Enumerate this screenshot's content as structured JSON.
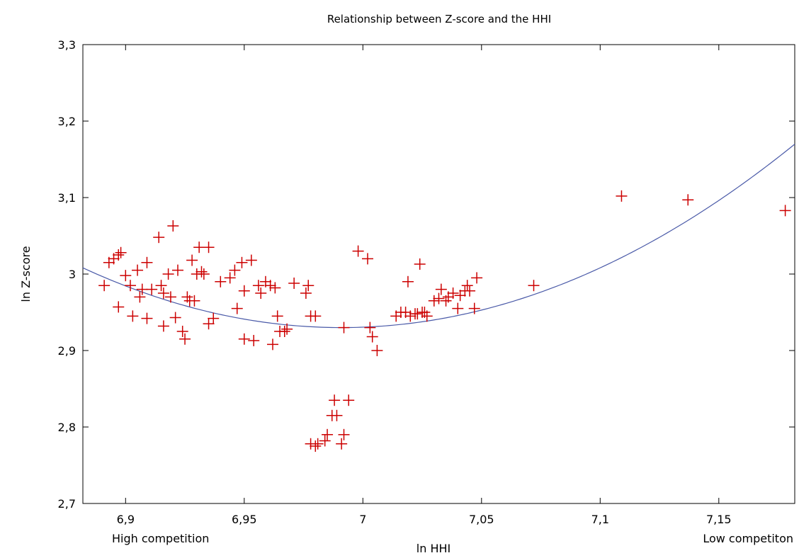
{
  "chart_data": {
    "type": "scatter",
    "title": "Relationship between Z-score and the HHI",
    "xlabel": "ln HHI",
    "ylabel": "ln Z-score",
    "xlim": [
      6.882,
      7.182
    ],
    "ylim": [
      2.7,
      3.3
    ],
    "x_ticks": [
      6.9,
      6.95,
      7.0,
      7.05,
      7.1,
      7.15
    ],
    "x_tick_labels": [
      "6,9",
      "6,95",
      "7",
      "7,05",
      "7,1",
      "7,15"
    ],
    "y_ticks": [
      2.7,
      2.8,
      2.9,
      3.0,
      3.1,
      3.2,
      3.3
    ],
    "y_tick_labels": [
      "2,7",
      "2,8",
      "2,9",
      "3",
      "3,1",
      "3,2",
      "3,3"
    ],
    "grid": false,
    "annotations": [
      {
        "name": "left-annotation",
        "text": "High competition"
      },
      {
        "name": "right-annotation",
        "text": "Low competiton"
      }
    ],
    "marker_color": "#cc0000",
    "fit_color": "#4a5aa8",
    "series": [
      {
        "marker": "plus",
        "points": [
          [
            6.891,
            2.985
          ],
          [
            6.893,
            3.015
          ],
          [
            6.895,
            3.02
          ],
          [
            6.897,
            3.025
          ],
          [
            6.898,
            3.028
          ],
          [
            6.897,
            2.957
          ],
          [
            6.9,
            2.998
          ],
          [
            6.902,
            2.985
          ],
          [
            6.903,
            2.945
          ],
          [
            6.905,
            3.005
          ],
          [
            6.906,
            2.97
          ],
          [
            6.907,
            2.98
          ],
          [
            6.909,
            3.015
          ],
          [
            6.909,
            2.942
          ],
          [
            6.911,
            2.98
          ],
          [
            6.914,
            3.048
          ],
          [
            6.915,
            2.985
          ],
          [
            6.916,
            2.975
          ],
          [
            6.916,
            2.932
          ],
          [
            6.918,
            3.0
          ],
          [
            6.919,
            2.97
          ],
          [
            6.92,
            3.063
          ],
          [
            6.921,
            2.943
          ],
          [
            6.922,
            3.005
          ],
          [
            6.924,
            2.925
          ],
          [
            6.925,
            2.915
          ],
          [
            6.926,
            2.97
          ],
          [
            6.927,
            2.965
          ],
          [
            6.928,
            3.018
          ],
          [
            6.929,
            2.965
          ],
          [
            6.93,
            3.0
          ],
          [
            6.931,
            3.035
          ],
          [
            6.932,
            3.003
          ],
          [
            6.933,
            3.0
          ],
          [
            6.935,
            3.035
          ],
          [
            6.935,
            2.935
          ],
          [
            6.937,
            2.942
          ],
          [
            6.94,
            2.99
          ],
          [
            6.944,
            2.995
          ],
          [
            6.946,
            3.005
          ],
          [
            6.947,
            2.955
          ],
          [
            6.949,
            3.015
          ],
          [
            6.95,
            2.915
          ],
          [
            6.95,
            2.978
          ],
          [
            6.953,
            3.018
          ],
          [
            6.954,
            2.913
          ],
          [
            6.956,
            2.985
          ],
          [
            6.957,
            2.975
          ],
          [
            6.959,
            2.99
          ],
          [
            6.961,
            2.985
          ],
          [
            6.962,
            2.908
          ],
          [
            6.963,
            2.982
          ],
          [
            6.964,
            2.945
          ],
          [
            6.965,
            2.925
          ],
          [
            6.967,
            2.925
          ],
          [
            6.968,
            2.928
          ],
          [
            6.971,
            2.988
          ],
          [
            6.976,
            2.975
          ],
          [
            6.977,
            2.985
          ],
          [
            6.978,
            2.778
          ],
          [
            6.978,
            2.945
          ],
          [
            6.98,
            2.945
          ],
          [
            6.98,
            2.775
          ],
          [
            6.981,
            2.778
          ],
          [
            6.984,
            2.782
          ],
          [
            6.985,
            2.79
          ],
          [
            6.987,
            2.815
          ],
          [
            6.988,
            2.835
          ],
          [
            6.989,
            2.815
          ],
          [
            6.991,
            2.778
          ],
          [
            6.992,
            2.79
          ],
          [
            6.992,
            2.93
          ],
          [
            6.994,
            2.835
          ],
          [
            6.998,
            3.03
          ],
          [
            7.002,
            3.02
          ],
          [
            7.003,
            2.93
          ],
          [
            7.004,
            2.918
          ],
          [
            7.006,
            2.9
          ],
          [
            7.014,
            2.945
          ],
          [
            7.016,
            2.95
          ],
          [
            7.018,
            2.95
          ],
          [
            7.019,
            2.99
          ],
          [
            7.02,
            2.945
          ],
          [
            7.022,
            2.948
          ],
          [
            7.023,
            2.948
          ],
          [
            7.024,
            3.013
          ],
          [
            7.025,
            2.95
          ],
          [
            7.026,
            2.95
          ],
          [
            7.027,
            2.945
          ],
          [
            7.03,
            2.965
          ],
          [
            7.032,
            2.968
          ],
          [
            7.033,
            2.98
          ],
          [
            7.035,
            2.965
          ],
          [
            7.036,
            2.97
          ],
          [
            7.038,
            2.975
          ],
          [
            7.04,
            2.955
          ],
          [
            7.041,
            2.972
          ],
          [
            7.043,
            2.978
          ],
          [
            7.044,
            2.985
          ],
          [
            7.045,
            2.978
          ],
          [
            7.047,
            2.955
          ],
          [
            7.048,
            2.995
          ],
          [
            7.072,
            2.985
          ],
          [
            7.109,
            3.102
          ],
          [
            7.137,
            3.097
          ],
          [
            7.178,
            3.083
          ]
        ]
      },
      {
        "type": "line",
        "fit": "quadratic",
        "coefficients": {
          "a": 6.575,
          "h": 6.991,
          "k": 2.93
        }
      }
    ]
  }
}
